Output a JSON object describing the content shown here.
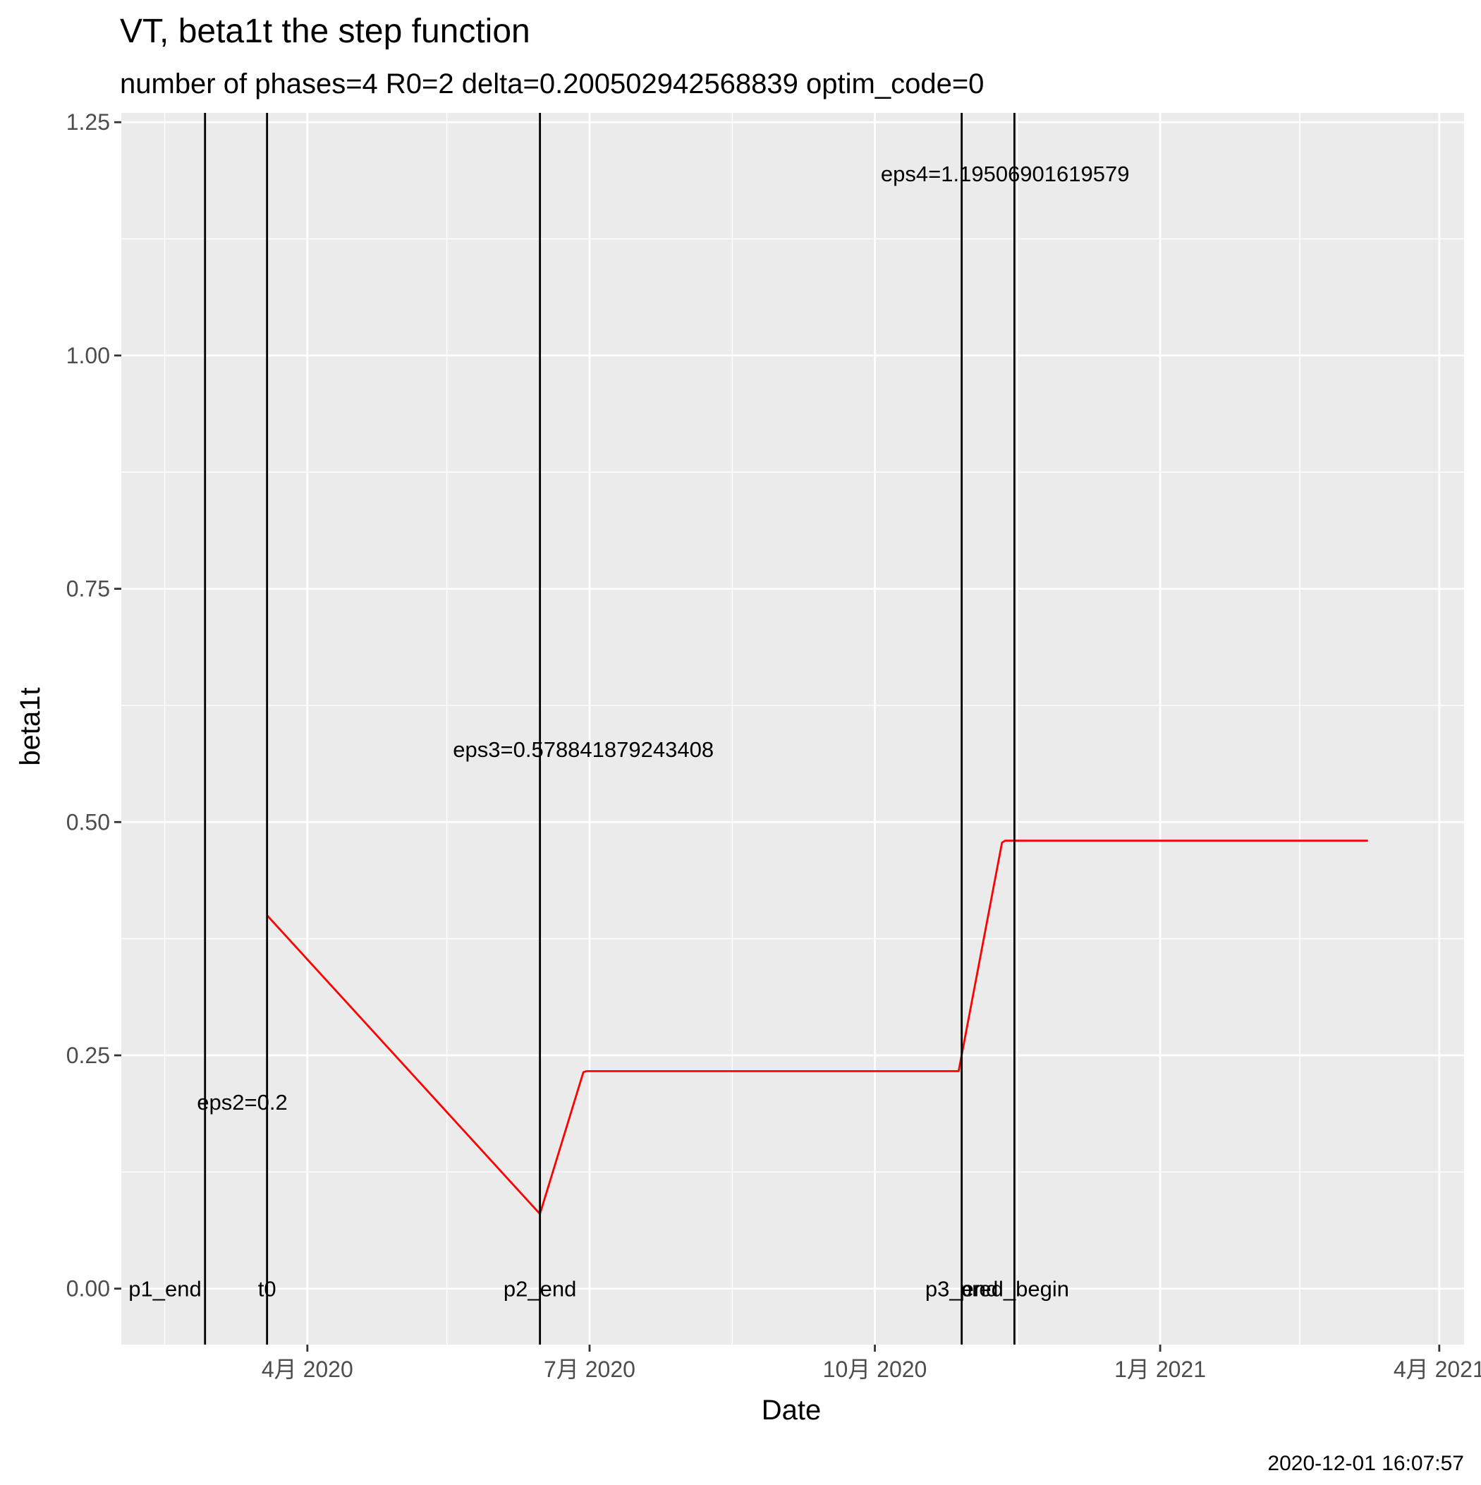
{
  "chart_data": {
    "type": "line",
    "title": "VT, beta1t the step function",
    "subtitle": "number of phases=4   R0=2   delta=0.200502942568839   optim_code=0",
    "xlabel": "Date",
    "ylabel": "beta1t",
    "caption": "2020-12-01 16:07:57",
    "x_type": "date",
    "xlim": [
      "2020-02-01",
      "2021-04-09"
    ],
    "ylim": [
      -0.06,
      1.26
    ],
    "x_ticks": [
      {
        "date": "2020-04-01",
        "label": "4月 2020"
      },
      {
        "date": "2020-07-01",
        "label": "7月 2020"
      },
      {
        "date": "2020-10-01",
        "label": "10月 2020"
      },
      {
        "date": "2021-01-01",
        "label": "1月 2021"
      },
      {
        "date": "2021-04-01",
        "label": "4月 2021"
      }
    ],
    "y_ticks": [
      {
        "value": 0.0,
        "label": "0.00"
      },
      {
        "value": 0.25,
        "label": "0.25"
      },
      {
        "value": 0.5,
        "label": "0.50"
      },
      {
        "value": 0.75,
        "label": "0.75"
      },
      {
        "value": 1.0,
        "label": "1.00"
      },
      {
        "value": 1.25,
        "label": "1.25"
      }
    ],
    "x_minor_grid": [
      "2020-02-15",
      "2020-05-16",
      "2020-08-16",
      "2020-11-16",
      "2021-02-15"
    ],
    "y_minor_grid": [
      0.125,
      0.375,
      0.625,
      0.875,
      1.125
    ],
    "grid": true,
    "series": [
      {
        "color": "#ff0000",
        "points": [
          {
            "x": "2020-03-19",
            "y": 0.4
          },
          {
            "x": "2020-06-15",
            "y": 0.08
          },
          {
            "x": "2020-06-29",
            "y": 0.232
          },
          {
            "x": "2020-06-30",
            "y": 0.233
          },
          {
            "x": "2020-10-28",
            "y": 0.233
          },
          {
            "x": "2020-11-11",
            "y": 0.478
          },
          {
            "x": "2020-11-12",
            "y": 0.48
          },
          {
            "x": "2021-03-09",
            "y": 0.48
          }
        ]
      }
    ],
    "vlines": [
      {
        "x": "2020-02-28",
        "label": "p1_end",
        "label_anchor": "end",
        "label_dx": -5
      },
      {
        "x": "2020-03-19",
        "label": "t0",
        "label_anchor": "middle",
        "label_dx": 0
      },
      {
        "x": "2020-06-15",
        "label": "p2_end",
        "label_anchor": "middle",
        "label_dx": 0
      },
      {
        "x": "2020-10-29",
        "label": "p3_end",
        "label_anchor": "middle",
        "label_dx": 0
      },
      {
        "x": "2020-11-15",
        "label": "pred_begin",
        "label_anchor": "middle",
        "label_dx": 0
      }
    ],
    "annotations": [
      {
        "text": "eps2=0.2",
        "x": "2020-03-11",
        "y": 0.2
      },
      {
        "text": "eps3=0.578841879243408",
        "x": "2020-06-29",
        "y": 0.578
      },
      {
        "text": "eps4=1.19506901619579",
        "x": "2020-11-12",
        "y": 1.195
      }
    ],
    "colors": {
      "panel_background": "#ebebeb",
      "grid": "#ffffff",
      "line": "#ff0000",
      "vline": "#000000",
      "tick_text": "#4d4d4d",
      "tick_mark": "#333333"
    }
  }
}
